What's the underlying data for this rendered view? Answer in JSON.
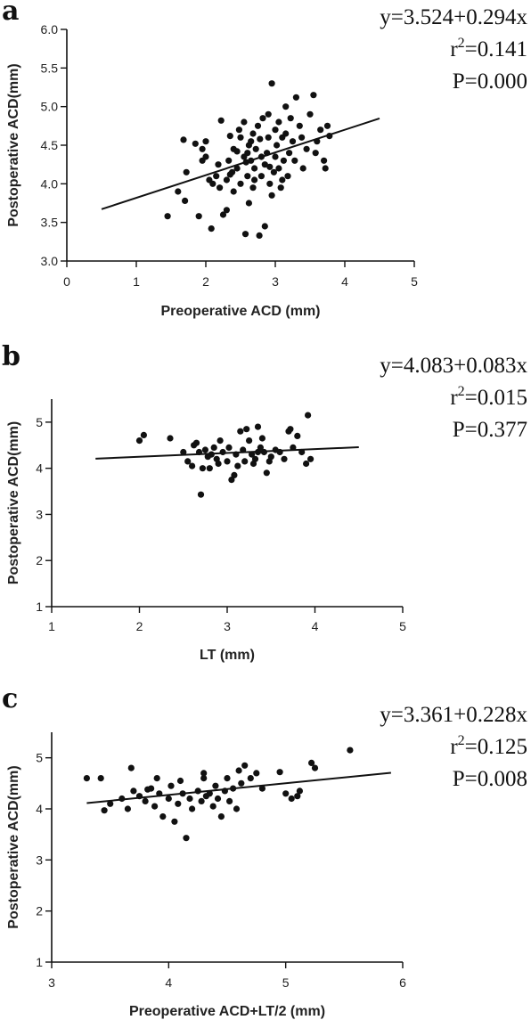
{
  "chart_data": [
    {
      "id": "a",
      "type": "scatter",
      "panel_label": "a",
      "equation": "y=3.524+0.294x",
      "r2_prefix": "r",
      "r2_exp": "2",
      "r2_value": "=0.141",
      "p_text": "P=0.000",
      "xlabel": "Preoperative ACD (mm)",
      "ylabel": "Postoperative ACD(mm)",
      "xlim": [
        0,
        5
      ],
      "ylim": [
        3.0,
        6.0
      ],
      "xticks": [
        0,
        1,
        2,
        3,
        4,
        5
      ],
      "yticks": [
        3.0,
        3.5,
        4.0,
        4.5,
        5.0,
        5.5,
        6.0
      ],
      "xtick_labels": [
        "0",
        "1",
        "2",
        "3",
        "4",
        "5"
      ],
      "ytick_labels": [
        "3.0",
        "3.5",
        "4.0",
        "4.5",
        "5.0",
        "5.5",
        "6.0"
      ],
      "fit": {
        "intercept": 3.524,
        "slope": 0.294,
        "x_from": 0.5,
        "x_to": 4.5
      },
      "points": [
        [
          1.45,
          3.58
        ],
        [
          1.6,
          3.9
        ],
        [
          1.68,
          4.57
        ],
        [
          1.72,
          4.15
        ],
        [
          1.7,
          3.78
        ],
        [
          1.85,
          4.52
        ],
        [
          1.9,
          3.58
        ],
        [
          1.95,
          4.3
        ],
        [
          2.0,
          4.35
        ],
        [
          2.0,
          4.55
        ],
        [
          2.05,
          4.05
        ],
        [
          2.08,
          3.42
        ],
        [
          2.1,
          4.0
        ],
        [
          2.15,
          4.1
        ],
        [
          2.18,
          4.25
        ],
        [
          2.2,
          3.95
        ],
        [
          2.22,
          4.82
        ],
        [
          2.25,
          3.6
        ],
        [
          2.3,
          4.05
        ],
        [
          2.3,
          3.66
        ],
        [
          2.33,
          4.3
        ],
        [
          2.35,
          4.62
        ],
        [
          2.38,
          4.15
        ],
        [
          2.4,
          4.45
        ],
        [
          2.4,
          3.9
        ],
        [
          2.45,
          4.2
        ],
        [
          2.48,
          4.7
        ],
        [
          2.5,
          4.6
        ],
        [
          2.5,
          4.0
        ],
        [
          2.55,
          4.35
        ],
        [
          2.55,
          4.8
        ],
        [
          2.57,
          3.35
        ],
        [
          2.6,
          4.1
        ],
        [
          2.6,
          4.4
        ],
        [
          2.62,
          3.75
        ],
        [
          2.65,
          4.3
        ],
        [
          2.65,
          4.55
        ],
        [
          2.68,
          4.65
        ],
        [
          2.7,
          4.05
        ],
        [
          2.7,
          4.2
        ],
        [
          2.72,
          4.45
        ],
        [
          2.75,
          4.75
        ],
        [
          2.77,
          3.33
        ],
        [
          2.8,
          4.1
        ],
        [
          2.8,
          4.35
        ],
        [
          2.82,
          4.85
        ],
        [
          2.85,
          3.45
        ],
        [
          2.85,
          4.25
        ],
        [
          2.88,
          4.4
        ],
        [
          2.9,
          4.6
        ],
        [
          2.9,
          4.9
        ],
        [
          2.92,
          4.0
        ],
        [
          2.95,
          3.85
        ],
        [
          2.95,
          5.3
        ],
        [
          2.98,
          4.15
        ],
        [
          3.0,
          4.35
        ],
        [
          3.0,
          4.7
        ],
        [
          3.02,
          4.5
        ],
        [
          3.05,
          4.2
        ],
        [
          3.05,
          4.8
        ],
        [
          3.08,
          3.95
        ],
        [
          3.1,
          4.6
        ],
        [
          3.12,
          4.3
        ],
        [
          3.15,
          4.65
        ],
        [
          3.15,
          5.0
        ],
        [
          3.18,
          4.1
        ],
        [
          3.2,
          4.4
        ],
        [
          3.22,
          4.85
        ],
        [
          3.25,
          4.55
        ],
        [
          3.28,
          4.3
        ],
        [
          3.3,
          5.12
        ],
        [
          3.35,
          4.75
        ],
        [
          3.38,
          4.6
        ],
        [
          3.4,
          4.2
        ],
        [
          3.45,
          4.45
        ],
        [
          3.5,
          4.9
        ],
        [
          3.55,
          5.15
        ],
        [
          3.58,
          4.4
        ],
        [
          3.6,
          4.55
        ],
        [
          3.65,
          4.7
        ],
        [
          3.7,
          4.3
        ],
        [
          3.72,
          4.2
        ],
        [
          3.75,
          4.75
        ],
        [
          3.78,
          4.62
        ],
        [
          2.35,
          4.12
        ],
        [
          2.58,
          4.28
        ],
        [
          2.68,
          3.95
        ],
        [
          2.92,
          4.22
        ],
        [
          3.1,
          4.05
        ],
        [
          1.95,
          4.45
        ],
        [
          2.45,
          4.42
        ],
        [
          2.62,
          4.5
        ],
        [
          2.78,
          4.58
        ]
      ]
    },
    {
      "id": "b",
      "type": "scatter",
      "panel_label": "b",
      "equation": "y=4.083+0.083x",
      "r2_prefix": "r",
      "r2_exp": "2",
      "r2_value": "=0.015",
      "p_text": "P=0.377",
      "xlabel": "LT (mm)",
      "ylabel": "Postoperative ACD(mm)",
      "xlim": [
        1,
        5
      ],
      "ylim": [
        1,
        5.5
      ],
      "xticks": [
        1,
        2,
        3,
        4,
        5
      ],
      "yticks": [
        1,
        2,
        3,
        4,
        5
      ],
      "xtick_labels": [
        "1",
        "2",
        "3",
        "4",
        "5"
      ],
      "ytick_labels": [
        "1",
        "2",
        "3",
        "4",
        "5"
      ],
      "fit": {
        "intercept": 4.083,
        "slope": 0.083,
        "x_from": 1.5,
        "x_to": 4.5
      },
      "points": [
        [
          2.0,
          4.6
        ],
        [
          2.05,
          4.72
        ],
        [
          2.35,
          4.65
        ],
        [
          2.5,
          4.35
        ],
        [
          2.55,
          4.15
        ],
        [
          2.6,
          4.05
        ],
        [
          2.65,
          4.55
        ],
        [
          2.68,
          4.35
        ],
        [
          2.7,
          3.43
        ],
        [
          2.72,
          4.0
        ],
        [
          2.75,
          4.4
        ],
        [
          2.8,
          4.0
        ],
        [
          2.82,
          4.3
        ],
        [
          2.85,
          4.45
        ],
        [
          2.88,
          4.2
        ],
        [
          2.9,
          4.1
        ],
        [
          2.92,
          4.6
        ],
        [
          2.95,
          4.35
        ],
        [
          3.0,
          4.15
        ],
        [
          3.02,
          4.45
        ],
        [
          3.05,
          3.75
        ],
        [
          3.08,
          3.85
        ],
        [
          3.1,
          4.3
        ],
        [
          3.12,
          4.05
        ],
        [
          3.15,
          4.8
        ],
        [
          3.18,
          4.4
        ],
        [
          3.2,
          4.15
        ],
        [
          3.22,
          4.85
        ],
        [
          3.25,
          4.6
        ],
        [
          3.28,
          4.3
        ],
        [
          3.3,
          4.1
        ],
        [
          3.32,
          4.2
        ],
        [
          3.35,
          4.35
        ],
        [
          3.38,
          4.45
        ],
        [
          3.4,
          4.65
        ],
        [
          3.42,
          4.35
        ],
        [
          3.45,
          3.9
        ],
        [
          3.48,
          4.15
        ],
        [
          3.5,
          4.25
        ],
        [
          3.55,
          4.4
        ],
        [
          3.6,
          4.35
        ],
        [
          3.65,
          4.2
        ],
        [
          3.7,
          4.8
        ],
        [
          3.72,
          4.85
        ],
        [
          3.75,
          4.45
        ],
        [
          3.8,
          4.7
        ],
        [
          3.85,
          4.35
        ],
        [
          3.9,
          4.1
        ],
        [
          3.92,
          5.15
        ],
        [
          3.95,
          4.2
        ],
        [
          2.62,
          4.5
        ],
        [
          2.78,
          4.25
        ],
        [
          3.35,
          4.9
        ]
      ]
    },
    {
      "id": "c",
      "type": "scatter",
      "panel_label": "c",
      "equation": "y=3.361+0.228x",
      "r2_prefix": "r",
      "r2_exp": "2",
      "r2_value": "=0.125",
      "p_text": "P=0.008",
      "xlabel": "Preoperative ACD+LT/2 (mm)",
      "ylabel": "Postoperative ACD(mm)",
      "xlim": [
        3,
        6
      ],
      "ylim": [
        1,
        5.5
      ],
      "xticks": [
        3,
        4,
        5,
        6
      ],
      "yticks": [
        1,
        2,
        3,
        4,
        5
      ],
      "xtick_labels": [
        "3",
        "4",
        "5",
        "6"
      ],
      "ytick_labels": [
        "1",
        "2",
        "3",
        "4",
        "5"
      ],
      "fit": {
        "intercept": 3.361,
        "slope": 0.228,
        "x_from": 3.3,
        "x_to": 5.9
      },
      "points": [
        [
          3.3,
          4.6
        ],
        [
          3.42,
          4.6
        ],
        [
          3.45,
          3.97
        ],
        [
          3.5,
          4.1
        ],
        [
          3.6,
          4.2
        ],
        [
          3.65,
          4.0
        ],
        [
          3.68,
          4.8
        ],
        [
          3.7,
          4.35
        ],
        [
          3.75,
          4.25
        ],
        [
          3.8,
          4.15
        ],
        [
          3.85,
          4.4
        ],
        [
          3.88,
          4.05
        ],
        [
          3.9,
          4.6
        ],
        [
          3.92,
          4.3
        ],
        [
          3.95,
          3.85
        ],
        [
          4.0,
          4.2
        ],
        [
          4.02,
          4.45
        ],
        [
          4.05,
          3.75
        ],
        [
          4.08,
          4.1
        ],
        [
          4.1,
          4.55
        ],
        [
          4.12,
          4.3
        ],
        [
          4.15,
          3.43
        ],
        [
          4.18,
          4.2
        ],
        [
          4.2,
          4.0
        ],
        [
          4.25,
          4.35
        ],
        [
          4.28,
          4.15
        ],
        [
          4.3,
          4.6
        ],
        [
          4.32,
          4.25
        ],
        [
          4.35,
          4.3
        ],
        [
          4.38,
          4.05
        ],
        [
          4.4,
          4.45
        ],
        [
          4.42,
          4.2
        ],
        [
          4.45,
          3.85
        ],
        [
          4.48,
          4.35
        ],
        [
          4.5,
          4.6
        ],
        [
          4.52,
          4.15
        ],
        [
          4.55,
          4.4
        ],
        [
          4.58,
          4.0
        ],
        [
          4.6,
          4.75
        ],
        [
          4.62,
          4.5
        ],
        [
          4.65,
          4.85
        ],
        [
          4.7,
          4.6
        ],
        [
          4.75,
          4.7
        ],
        [
          4.8,
          4.4
        ],
        [
          4.95,
          4.72
        ],
        [
          5.0,
          4.3
        ],
        [
          5.05,
          4.2
        ],
        [
          5.1,
          4.25
        ],
        [
          5.12,
          4.35
        ],
        [
          5.22,
          4.9
        ],
        [
          5.25,
          4.8
        ],
        [
          5.55,
          5.15
        ],
        [
          4.3,
          4.7
        ],
        [
          3.82,
          4.38
        ]
      ]
    }
  ]
}
